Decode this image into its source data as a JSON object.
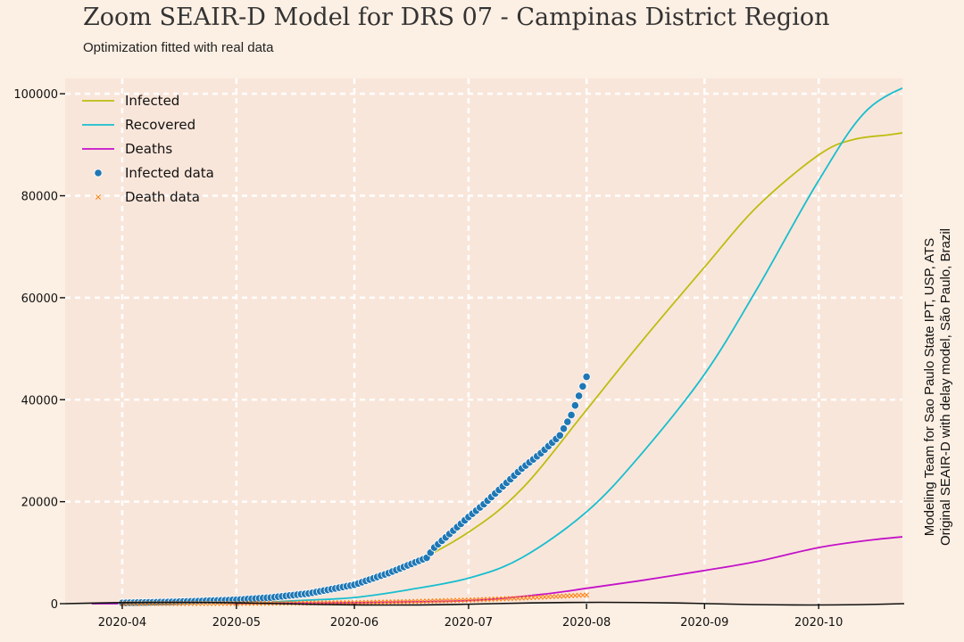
{
  "title": "Zoom SEAIR-D Model for DRS 07 - Campinas District Region",
  "subtitle": "Optimization fitted with real data",
  "side_note": {
    "line1": "Modeling Team for Sao Paulo State IPT, USP, ATS",
    "line2": "Original SEAIR-D with delay model, São Paulo, Brazil"
  },
  "colors": {
    "background": "#fcefe3",
    "plot_bg": "#f9e6da",
    "infected": "#bdbd12",
    "recovered": "#17becf",
    "deaths": "#c312c9",
    "infected_data": "#1f77b4",
    "death_data": "#ff7f0e"
  },
  "chart_data": {
    "type": "line",
    "x_axis": {
      "range": [
        "2020-03-17",
        "2020-10-23"
      ],
      "ticks": [
        "2020-04-01",
        "2020-05-01",
        "2020-06-01",
        "2020-07-01",
        "2020-08-01",
        "2020-09-01",
        "2020-10-01"
      ],
      "tick_labels": [
        "2020-04",
        "2020-05",
        "2020-06",
        "2020-07",
        "2020-08",
        "2020-09",
        "2020-10"
      ]
    },
    "y_axis": {
      "range": [
        0,
        103000
      ],
      "ticks": [
        0,
        20000,
        40000,
        60000,
        80000,
        100000
      ],
      "tick_labels": [
        "0",
        "20000",
        "40000",
        "60000",
        "80000",
        "100000"
      ]
    },
    "grid": true,
    "legend_position": "top-left",
    "series": [
      {
        "name": "Infected",
        "kind": "line",
        "color_key": "infected",
        "points": [
          [
            "2020-03-24",
            0
          ],
          [
            "2020-04-15",
            300
          ],
          [
            "2020-05-01",
            700
          ],
          [
            "2020-05-15",
            1500
          ],
          [
            "2020-06-01",
            3500
          ],
          [
            "2020-06-15",
            7500
          ],
          [
            "2020-07-01",
            14000
          ],
          [
            "2020-07-15",
            22500
          ],
          [
            "2020-08-01",
            38000
          ],
          [
            "2020-08-15",
            51000
          ],
          [
            "2020-09-01",
            66000
          ],
          [
            "2020-09-15",
            78000
          ],
          [
            "2020-10-01",
            88000
          ],
          [
            "2020-10-10",
            91000
          ],
          [
            "2020-10-20",
            92000
          ],
          [
            "2020-10-29",
            93000
          ]
        ]
      },
      {
        "name": "Recovered",
        "kind": "line",
        "color_key": "recovered",
        "points": [
          [
            "2020-03-24",
            0
          ],
          [
            "2020-05-01",
            150
          ],
          [
            "2020-05-20",
            700
          ],
          [
            "2020-06-01",
            1200
          ],
          [
            "2020-06-15",
            2700
          ],
          [
            "2020-07-01",
            5000
          ],
          [
            "2020-07-15",
            9000
          ],
          [
            "2020-08-01",
            18000
          ],
          [
            "2020-08-15",
            29000
          ],
          [
            "2020-09-01",
            45000
          ],
          [
            "2020-09-15",
            62000
          ],
          [
            "2020-10-01",
            83000
          ],
          [
            "2020-10-14",
            97000
          ],
          [
            "2020-10-29",
            103000
          ]
        ]
      },
      {
        "name": "Deaths",
        "kind": "line",
        "color_key": "deaths",
        "points": [
          [
            "2020-03-24",
            0
          ],
          [
            "2020-05-01",
            50
          ],
          [
            "2020-06-01",
            200
          ],
          [
            "2020-07-01",
            600
          ],
          [
            "2020-07-20",
            1800
          ],
          [
            "2020-08-01",
            3000
          ],
          [
            "2020-08-15",
            4500
          ],
          [
            "2020-09-01",
            6500
          ],
          [
            "2020-09-15",
            8300
          ],
          [
            "2020-10-01",
            11000
          ],
          [
            "2020-10-15",
            12500
          ],
          [
            "2020-10-29",
            13500
          ]
        ]
      },
      {
        "name": "Infected data",
        "kind": "scatter",
        "marker": "circle",
        "color_key": "infected_data",
        "points": [
          [
            "2020-04-01",
            150
          ],
          [
            "2020-04-15",
            350
          ],
          [
            "2020-05-01",
            750
          ],
          [
            "2020-05-10",
            1200
          ],
          [
            "2020-05-20",
            2000
          ],
          [
            "2020-06-01",
            3700
          ],
          [
            "2020-06-10",
            6000
          ],
          [
            "2020-06-15",
            7500
          ],
          [
            "2020-06-20",
            9000
          ],
          [
            "2020-06-22",
            11000
          ],
          [
            "2020-07-01",
            17000
          ],
          [
            "2020-07-05",
            19500
          ],
          [
            "2020-07-10",
            23000
          ],
          [
            "2020-07-15",
            26500
          ],
          [
            "2020-07-20",
            29500
          ],
          [
            "2020-07-25",
            33000
          ],
          [
            "2020-07-28",
            37000
          ],
          [
            "2020-08-01",
            44500
          ]
        ]
      },
      {
        "name": "Death data",
        "kind": "scatter",
        "marker": "x",
        "color_key": "death_data",
        "points": [
          [
            "2020-04-01",
            5
          ],
          [
            "2020-05-01",
            40
          ],
          [
            "2020-06-01",
            200
          ],
          [
            "2020-06-15",
            400
          ],
          [
            "2020-07-01",
            700
          ],
          [
            "2020-07-15",
            1100
          ],
          [
            "2020-08-01",
            1700
          ]
        ]
      }
    ]
  }
}
